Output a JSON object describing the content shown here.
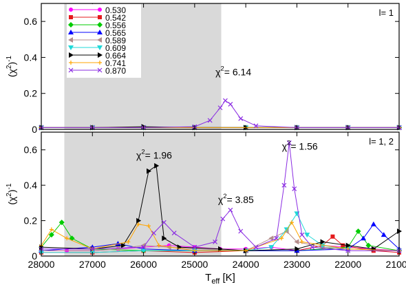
{
  "chart_data": [
    {
      "type": "line",
      "panel": "top",
      "xlabel": "",
      "ylabel": "(χ²)⁻¹",
      "xlim": [
        28000,
        21000
      ],
      "ylim": [
        0,
        0.7
      ],
      "x_ticks": [
        28000,
        27000,
        26000,
        25000,
        24000,
        23000,
        22000,
        21000
      ],
      "y_ticks": [
        0,
        0.2,
        0.4,
        0.6
      ],
      "y_tick_labels": [
        "0",
        "0.2",
        "0.4",
        "0.6"
      ],
      "shaded_range": [
        27550,
        24480
      ],
      "grid": false,
      "panel_label": "l= 1",
      "legend_placement": "top-left",
      "annotations": [
        {
          "text": "χ²= 6.14",
          "x": 24350,
          "y": 0.3
        }
      ],
      "series": [
        {
          "name": "0.530",
          "color": "#ff00ff",
          "marker": "circle",
          "x": [
            28000,
            27000,
            26000,
            25000,
            24000,
            23000,
            22000,
            21000
          ],
          "y": [
            0.01,
            0.01,
            0.01,
            0.01,
            0.01,
            0.01,
            0.01,
            0.01
          ]
        },
        {
          "name": "0.542",
          "color": "#e41a1c",
          "marker": "square",
          "x": [
            28000,
            27000,
            26000,
            25000,
            24000,
            23000,
            22000,
            21000
          ],
          "y": [
            0.01,
            0.01,
            0.01,
            0.01,
            0.01,
            0.01,
            0.01,
            0.01
          ]
        },
        {
          "name": "0.556",
          "color": "#00cc00",
          "marker": "diamond",
          "x": [
            28000,
            27000,
            26000,
            25000,
            24000,
            23000,
            22000,
            21000
          ],
          "y": [
            0.01,
            0.01,
            0.01,
            0.01,
            0.01,
            0.01,
            0.01,
            0.01
          ]
        },
        {
          "name": "0.565",
          "color": "#0000ff",
          "marker": "triangle-up",
          "x": [
            28000,
            27000,
            26000,
            25000,
            24000,
            23000,
            22000,
            21000
          ],
          "y": [
            0.01,
            0.01,
            0.01,
            0.01,
            0.01,
            0.01,
            0.01,
            0.01
          ]
        },
        {
          "name": "0.589",
          "color": "#b48c8c",
          "marker": "triangle-left",
          "x": [
            28000,
            27000,
            26000,
            25000,
            24000,
            23000,
            22000,
            21000
          ],
          "y": [
            0.01,
            0.01,
            0.01,
            0.01,
            0.01,
            0.01,
            0.01,
            0.01
          ]
        },
        {
          "name": "0.609",
          "color": "#20d8d8",
          "marker": "triangle-down",
          "x": [
            28000,
            27000,
            26000,
            25000,
            24000,
            23000,
            22000,
            21000
          ],
          "y": [
            0.01,
            0.01,
            0.01,
            0.01,
            0.01,
            0.01,
            0.01,
            0.01
          ]
        },
        {
          "name": "0.664",
          "color": "#000000",
          "marker": "triangle-right",
          "x": [
            28000,
            27000,
            26000,
            25000,
            24000,
            23000,
            22000,
            21000
          ],
          "y": [
            0.01,
            0.01,
            0.015,
            0.01,
            0.01,
            0.01,
            0.01,
            0.01
          ]
        },
        {
          "name": "0.741",
          "color": "#ffa500",
          "marker": "plus",
          "x": [
            28000,
            27000,
            26000,
            25000,
            24000,
            23000,
            22000,
            21000
          ],
          "y": [
            0.01,
            0.01,
            0.01,
            0.01,
            0.01,
            0.01,
            0.01,
            0.01
          ]
        },
        {
          "name": "0.870",
          "color": "#8a2be2",
          "marker": "x",
          "x": [
            28000,
            27000,
            26000,
            25000,
            24700,
            24500,
            24400,
            24300,
            24100,
            23800,
            23000,
            22000,
            21000
          ],
          "y": [
            0.01,
            0.01,
            0.01,
            0.015,
            0.05,
            0.12,
            0.16,
            0.14,
            0.06,
            0.02,
            0.01,
            0.01,
            0.01
          ]
        }
      ]
    },
    {
      "type": "line",
      "panel": "bottom",
      "xlabel": "T_eff [K]",
      "ylabel": "(χ²)⁻¹",
      "xlim": [
        28000,
        21000
      ],
      "ylim": [
        0,
        0.7
      ],
      "x_ticks": [
        28000,
        27000,
        26000,
        25000,
        24000,
        23000,
        22000,
        21000
      ],
      "y_ticks": [
        0,
        0.2,
        0.4,
        0.6
      ],
      "y_tick_labels": [
        "0",
        "0.2",
        "0.4",
        "0.6"
      ],
      "shaded_range": [
        27550,
        24480
      ],
      "grid": false,
      "panel_label": "l= 1, 2",
      "annotations": [
        {
          "text": "χ²= 1.96",
          "x": 25900,
          "y": 0.55
        },
        {
          "text": "χ²= 3.85",
          "x": 24300,
          "y": 0.3
        },
        {
          "text": "χ²= 1.56",
          "x": 23050,
          "y": 0.6
        }
      ],
      "series": [
        {
          "name": "0.530",
          "color": "#ff00ff",
          "marker": "circle",
          "x": [
            28000,
            27500,
            27000,
            26500,
            26000,
            25500,
            25000,
            24500,
            24000,
            23500,
            23000,
            22500,
            22000,
            21500,
            21000
          ],
          "y": [
            0.03,
            0.03,
            0.03,
            0.04,
            0.05,
            0.06,
            0.05,
            0.04,
            0.04,
            0.05,
            0.03,
            0.06,
            0.05,
            0.04,
            0.03
          ]
        },
        {
          "name": "0.542",
          "color": "#e41a1c",
          "marker": "square",
          "x": [
            28000,
            27000,
            26000,
            25000,
            24000,
            23000,
            22500,
            22300,
            22100,
            21500,
            21000
          ],
          "y": [
            0.02,
            0.02,
            0.03,
            0.02,
            0.03,
            0.03,
            0.06,
            0.11,
            0.06,
            0.03,
            0.02
          ]
        },
        {
          "name": "0.556",
          "color": "#00cc00",
          "marker": "diamond",
          "x": [
            28000,
            27800,
            27600,
            27400,
            27000,
            26000,
            25000,
            24000,
            23000,
            22000,
            21800,
            21600,
            21000
          ],
          "y": [
            0.05,
            0.12,
            0.19,
            0.1,
            0.04,
            0.03,
            0.03,
            0.03,
            0.03,
            0.05,
            0.14,
            0.06,
            0.03
          ]
        },
        {
          "name": "0.565",
          "color": "#0000ff",
          "marker": "triangle-up",
          "x": [
            28000,
            27000,
            26500,
            26000,
            25000,
            24000,
            23000,
            22000,
            21700,
            21500,
            21300,
            21000
          ],
          "y": [
            0.03,
            0.05,
            0.07,
            0.04,
            0.03,
            0.03,
            0.03,
            0.04,
            0.1,
            0.18,
            0.12,
            0.04
          ]
        },
        {
          "name": "0.589",
          "color": "#b48c8c",
          "marker": "triangle-left",
          "x": [
            28000,
            27000,
            26500,
            26000,
            25500,
            25000,
            24000,
            23500,
            23200,
            23000,
            22500,
            22000,
            21000
          ],
          "y": [
            0.03,
            0.03,
            0.04,
            0.06,
            0.05,
            0.04,
            0.03,
            0.1,
            0.14,
            0.08,
            0.05,
            0.04,
            0.03
          ]
        },
        {
          "name": "0.609",
          "color": "#20d8d8",
          "marker": "triangle-down",
          "x": [
            28000,
            27000,
            26000,
            25000,
            24000,
            23500,
            23200,
            23000,
            22800,
            22500,
            22000,
            21000
          ],
          "y": [
            0.02,
            0.02,
            0.03,
            0.03,
            0.03,
            0.05,
            0.15,
            0.24,
            0.12,
            0.06,
            0.04,
            0.03
          ]
        },
        {
          "name": "0.664",
          "color": "#000000",
          "marker": "triangle-right",
          "x": [
            28000,
            27000,
            26400,
            26100,
            25900,
            25750,
            25600,
            25300,
            24500,
            24000,
            23000,
            22500,
            22000,
            21500,
            21000
          ],
          "y": [
            0.05,
            0.04,
            0.06,
            0.2,
            0.48,
            0.51,
            0.1,
            0.05,
            0.04,
            0.03,
            0.04,
            0.08,
            0.06,
            0.04,
            0.14
          ]
        },
        {
          "name": "0.741",
          "color": "#ffa500",
          "marker": "plus",
          "x": [
            28000,
            27800,
            27500,
            27000,
            26300,
            26100,
            25900,
            25700,
            25000,
            24000,
            23300,
            23100,
            22900,
            22000,
            21000
          ],
          "y": [
            0.06,
            0.15,
            0.1,
            0.04,
            0.08,
            0.18,
            0.17,
            0.06,
            0.03,
            0.03,
            0.1,
            0.19,
            0.08,
            0.04,
            0.03
          ]
        },
        {
          "name": "0.870",
          "color": "#8a2be2",
          "marker": "x",
          "x": [
            28000,
            27000,
            26000,
            25800,
            25600,
            25400,
            25000,
            24600,
            24450,
            24300,
            24100,
            23800,
            23400,
            23250,
            23150,
            23050,
            22900,
            22700,
            22000,
            21000
          ],
          "y": [
            0.04,
            0.04,
            0.05,
            0.13,
            0.19,
            0.13,
            0.05,
            0.08,
            0.21,
            0.26,
            0.14,
            0.05,
            0.1,
            0.4,
            0.64,
            0.38,
            0.12,
            0.05,
            0.03,
            0.03
          ]
        }
      ]
    }
  ]
}
